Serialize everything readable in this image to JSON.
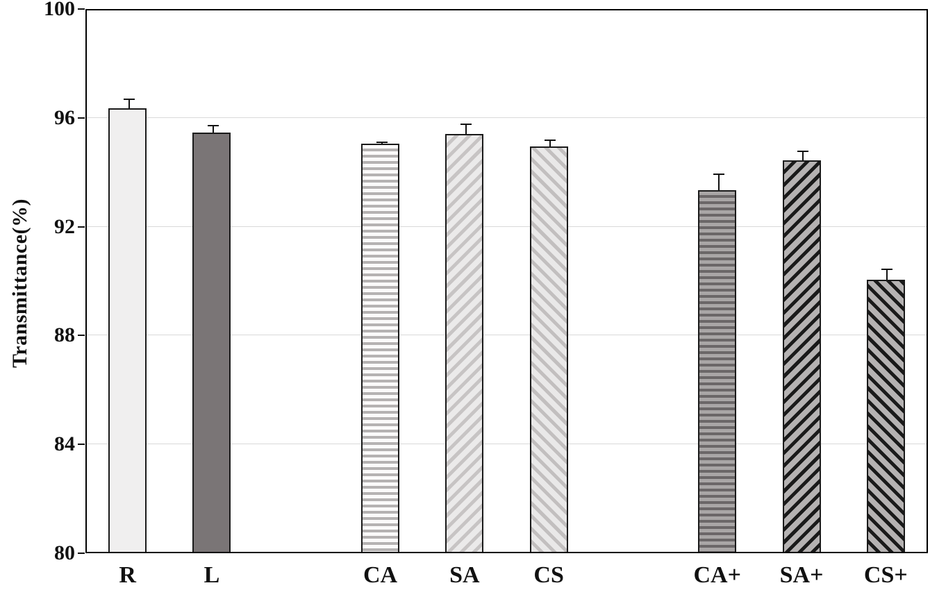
{
  "chart_data": {
    "type": "bar",
    "title": "",
    "xlabel": "",
    "ylabel": "Transmittance(%)",
    "ylim": [
      80,
      100
    ],
    "yticks": [
      80,
      84,
      88,
      92,
      96,
      100
    ],
    "grid": "horizontal-light-gray",
    "legend_position": "none",
    "slot_count": 10,
    "categories": [
      "R",
      "L",
      "CA",
      "SA",
      "CS",
      "CA+",
      "SA+",
      "CS+"
    ],
    "values": [
      96.3,
      95.4,
      95.0,
      95.35,
      94.9,
      93.3,
      94.4,
      90.0
    ],
    "errors_plus": [
      0.35,
      0.3,
      0.08,
      0.4,
      0.25,
      0.6,
      0.35,
      0.4
    ],
    "bars": [
      {
        "label": "R",
        "value": 96.3,
        "error": 0.35,
        "slot": 0,
        "pattern": "plain",
        "bg": "#f0efef",
        "stripe": "#f0efef"
      },
      {
        "label": "L",
        "value": 95.4,
        "error": 0.3,
        "slot": 1,
        "pattern": "solid",
        "bg": "#7a7576",
        "stripe": "#7a7576"
      },
      {
        "label": "CA",
        "value": 95.0,
        "error": 0.08,
        "slot": 3,
        "pattern": "hstripe",
        "bg": "#fbfafa",
        "stripe": "#b5b2b2"
      },
      {
        "label": "SA",
        "value": 95.35,
        "error": 0.4,
        "slot": 4,
        "pattern": "diag-up",
        "bg": "#ebeaea",
        "stripe": "#c7c4c4"
      },
      {
        "label": "CS",
        "value": 94.9,
        "error": 0.25,
        "slot": 5,
        "pattern": "diag-down",
        "bg": "#e9e8e8",
        "stripe": "#c2bfbf"
      },
      {
        "label": "CA+",
        "value": 93.3,
        "error": 0.6,
        "slot": 7,
        "pattern": "hstripe",
        "bg": "#a9a6a6",
        "stripe": "#6b6768"
      },
      {
        "label": "SA+",
        "value": 94.4,
        "error": 0.35,
        "slot": 8,
        "pattern": "diag-up",
        "bg": "#b5b2b2",
        "stripe": "#1a1a1a"
      },
      {
        "label": "CS+",
        "value": 90.0,
        "error": 0.4,
        "slot": 9,
        "pattern": "diag-down",
        "bg": "#b5b2b2",
        "stripe": "#1a1a1a"
      }
    ]
  },
  "colors": {
    "axis": "#000000",
    "gridline": "#d9d9d9",
    "text": "#111111",
    "background": "#ffffff",
    "bar_border": "#1a1a1a"
  }
}
